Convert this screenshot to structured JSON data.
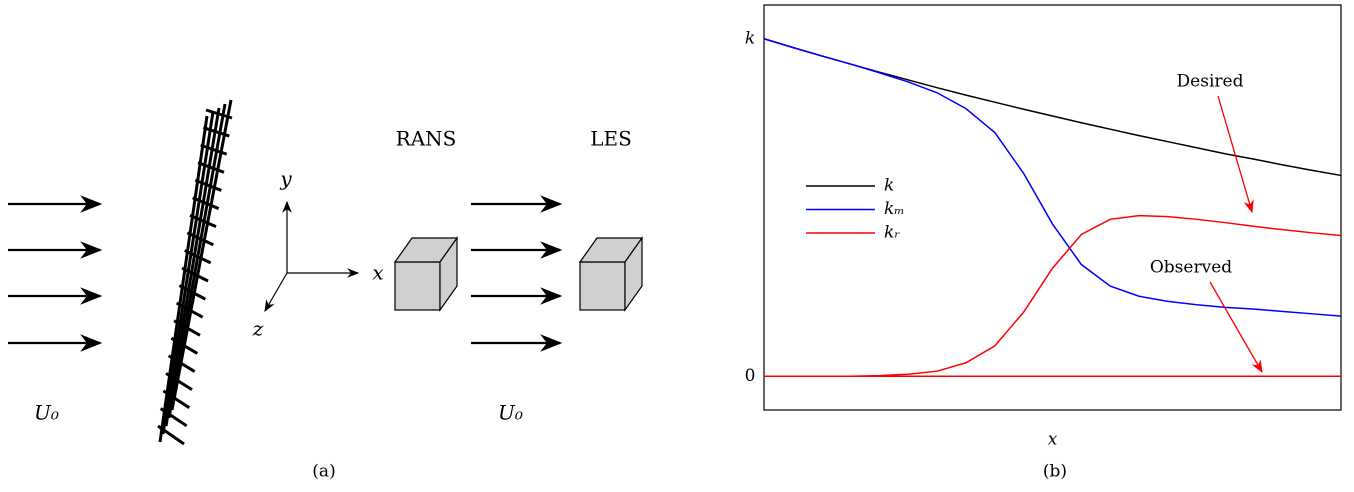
{
  "panel_a": {
    "arrow_label_left": "U₀",
    "axis_y": "y",
    "axis_x": "x",
    "axis_z": "z",
    "label_rans": "RANS",
    "label_les": "LES",
    "arrow_label_right": "U₀",
    "caption": "(a)"
  },
  "chart_data": {
    "type": "line",
    "xlabel": "x",
    "caption": "(b)",
    "x": [
      0,
      0.05,
      0.1,
      0.15,
      0.2,
      0.25,
      0.3,
      0.35,
      0.4,
      0.45,
      0.5,
      0.55,
      0.6,
      0.65,
      0.7,
      0.75,
      0.8,
      0.85,
      0.9,
      0.95,
      1
    ],
    "xlim": [
      0,
      1
    ],
    "ylim": [
      -0.1,
      1.1
    ],
    "yticks": [
      0,
      {
        "value": 1,
        "label": "k"
      }
    ],
    "series": [
      {
        "name": "k",
        "color": "#000000",
        "values": [
          1.0,
          0.974,
          0.949,
          0.925,
          0.901,
          0.878,
          0.855,
          0.833,
          0.812,
          0.791,
          0.771,
          0.751,
          0.732,
          0.713,
          0.695,
          0.677,
          0.659,
          0.643,
          0.626,
          0.61,
          0.595
        ]
      },
      {
        "name": "kₘ",
        "color": "#0000ff",
        "values": [
          1.0,
          0.974,
          0.949,
          0.925,
          0.899,
          0.872,
          0.84,
          0.793,
          0.722,
          0.601,
          0.451,
          0.331,
          0.267,
          0.237,
          0.222,
          0.212,
          0.204,
          0.199,
          0.192,
          0.185,
          0.178
        ]
      },
      {
        "name": "kᵣ",
        "color": "#ff0000",
        "values": [
          0,
          0,
          0,
          0,
          0.002,
          0.006,
          0.015,
          0.04,
          0.09,
          0.19,
          0.32,
          0.42,
          0.465,
          0.476,
          0.473,
          0.465,
          0.455,
          0.444,
          0.434,
          0.425,
          0.417
        ]
      },
      {
        "color": "#ff0000",
        "values": [
          0,
          0,
          0,
          0,
          0,
          0,
          0,
          0,
          0,
          0,
          0,
          0,
          0,
          0,
          0,
          0,
          0,
          0,
          0,
          0,
          0
        ]
      }
    ],
    "annotations": [
      {
        "text": "Desired"
      },
      {
        "text": "Observed"
      }
    ],
    "legend": "center-left"
  }
}
